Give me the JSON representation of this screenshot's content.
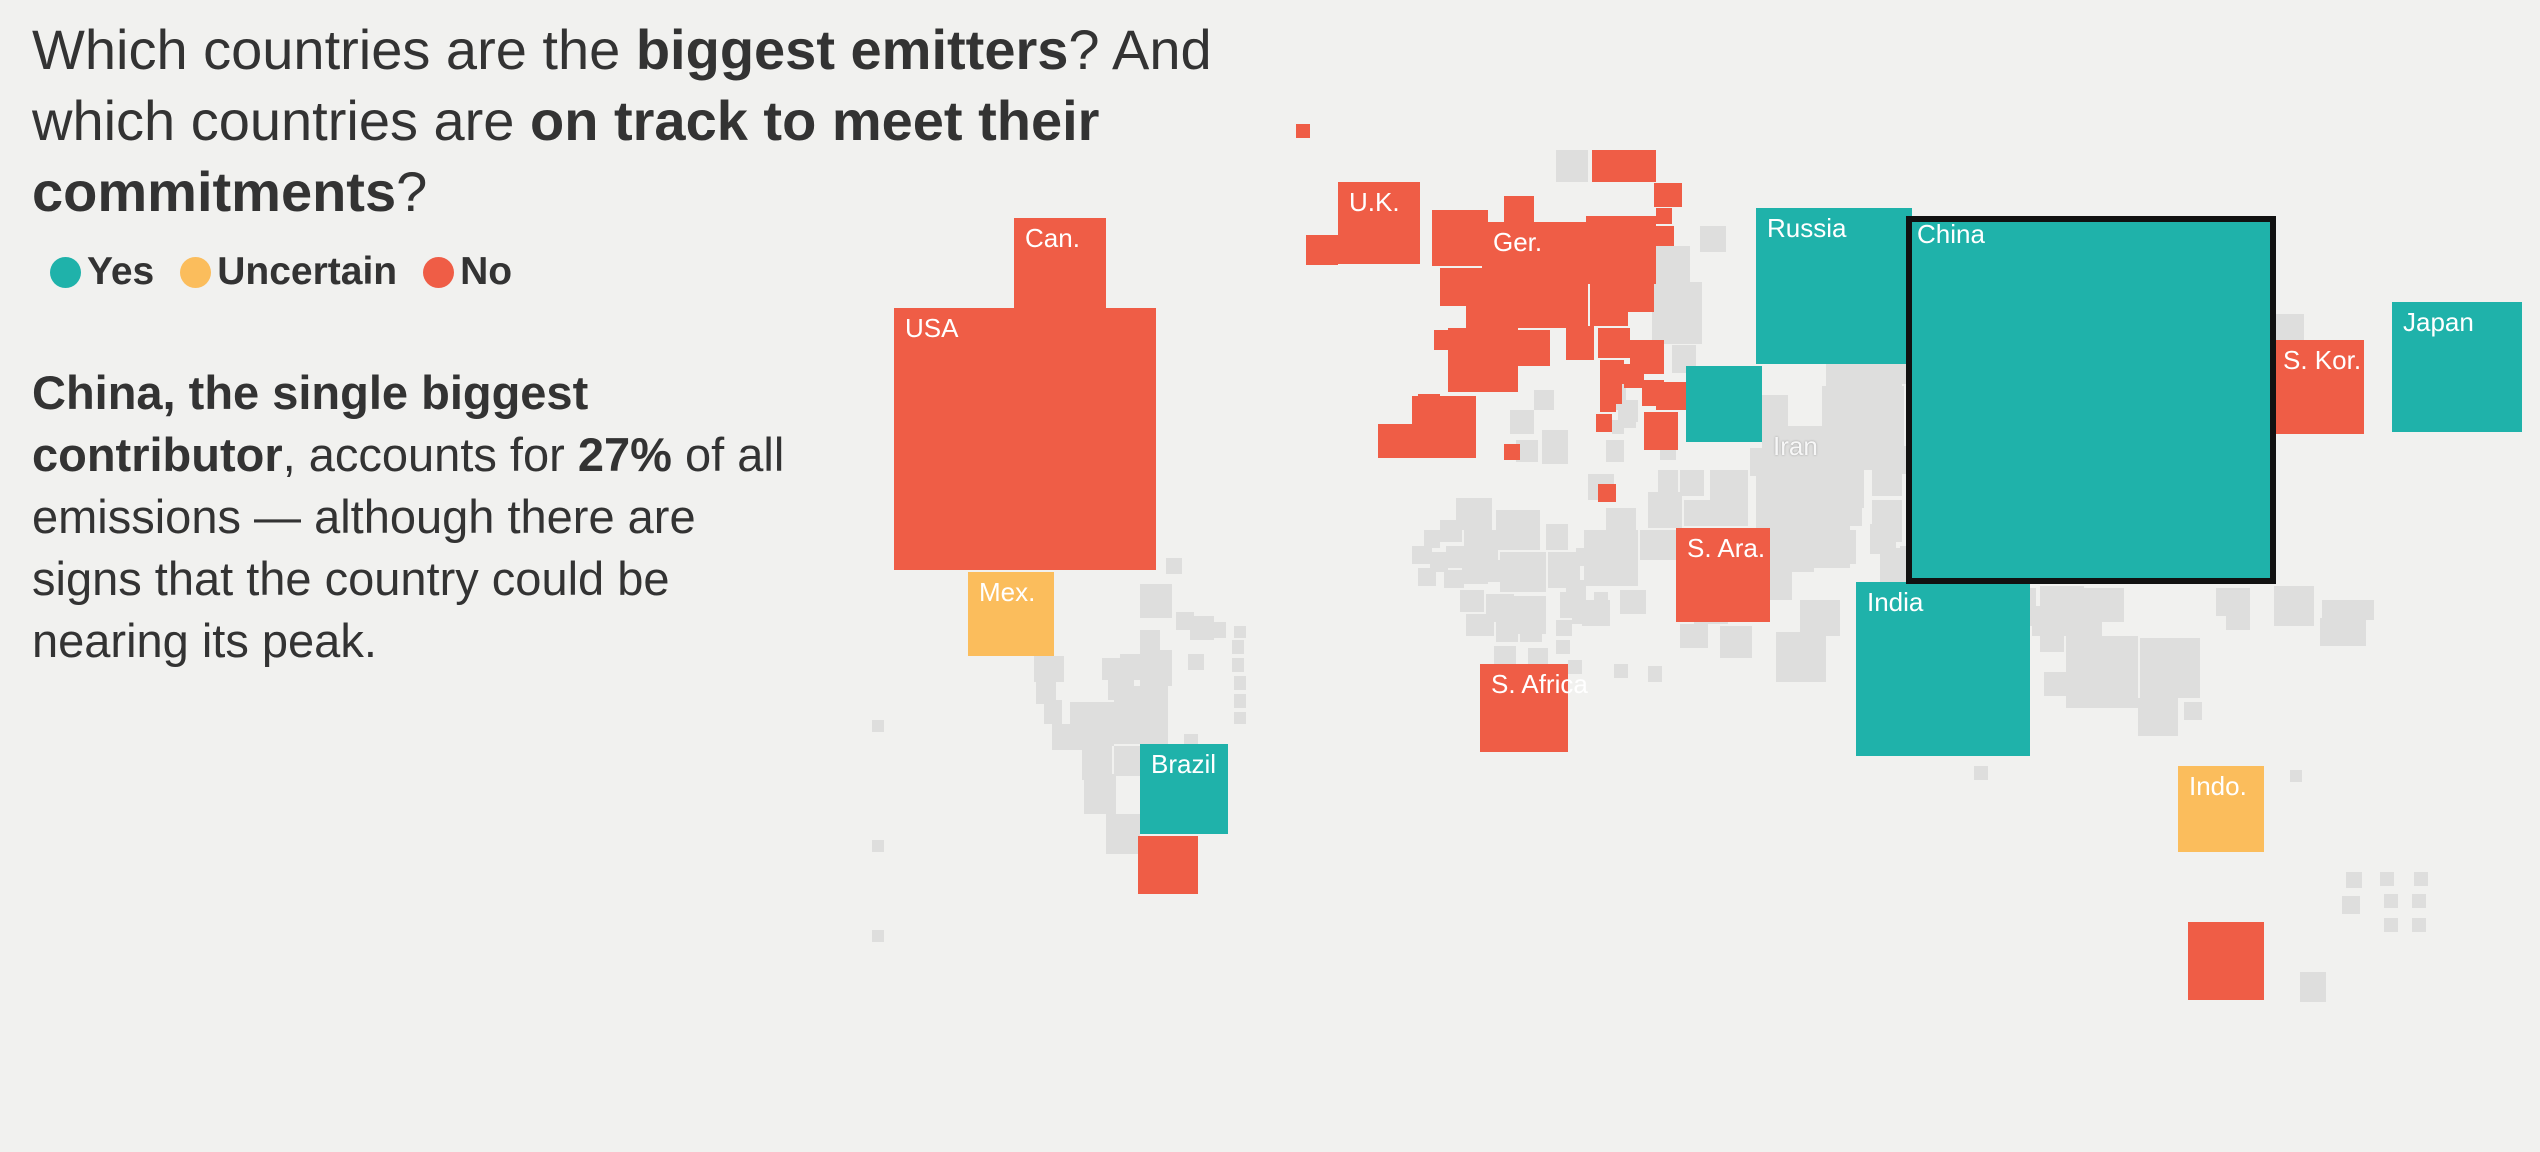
{
  "headline": {
    "part1": "Which countries are the ",
    "bold1": "biggest emitters",
    "part2": "? And which countries are ",
    "bold2": "on track to meet their commitments",
    "part3": "?"
  },
  "legend": [
    {
      "label": "Yes",
      "color": "#1fb2aa"
    },
    {
      "label": "Uncertain",
      "color": "#fbbd5c"
    },
    {
      "label": "No",
      "color": "#ef5d46"
    }
  ],
  "annotation": {
    "bold1": "China, the single biggest contributor",
    "part1": ", accounts for ",
    "bold2": "27%",
    "part2": " of all emissions — although there are signs that the country could be nearing its peak."
  },
  "colors": {
    "yes": "#1fb2aa",
    "uncertain": "#fbbd5c",
    "no": "#ef5d46",
    "other": "#dededd",
    "highlight_border": "#111111",
    "background": "#f1f1ef"
  },
  "countries": [
    {
      "id": "canada",
      "label": "Can.",
      "status": "no"
    },
    {
      "id": "usa",
      "label": "USA",
      "status": "no"
    },
    {
      "id": "mexico",
      "label": "Mex.",
      "status": "uncertain"
    },
    {
      "id": "brazil",
      "label": "Brazil",
      "status": "yes"
    },
    {
      "id": "argentina",
      "label": "",
      "status": "no"
    },
    {
      "id": "uk",
      "label": "U.K.",
      "status": "no"
    },
    {
      "id": "germany",
      "label": "Ger.",
      "status": "no"
    },
    {
      "id": "russia",
      "label": "Russia",
      "status": "yes"
    },
    {
      "id": "china",
      "label": "China",
      "status": "yes",
      "highlight": true
    },
    {
      "id": "japan",
      "label": "Japan",
      "status": "yes"
    },
    {
      "id": "south-korea",
      "label": "S. Kor.",
      "status": "no"
    },
    {
      "id": "iran",
      "label": "Iran",
      "status": "other"
    },
    {
      "id": "saudi-arabia",
      "label": "S. Ara.",
      "status": "no"
    },
    {
      "id": "india",
      "label": "India",
      "status": "yes"
    },
    {
      "id": "south-africa",
      "label": "S. Africa",
      "status": "no"
    },
    {
      "id": "indonesia",
      "label": "Indo.",
      "status": "uncertain"
    },
    {
      "id": "australia",
      "label": "",
      "status": "no"
    },
    {
      "id": "kazakhstan",
      "label": "",
      "status": "yes"
    }
  ]
}
